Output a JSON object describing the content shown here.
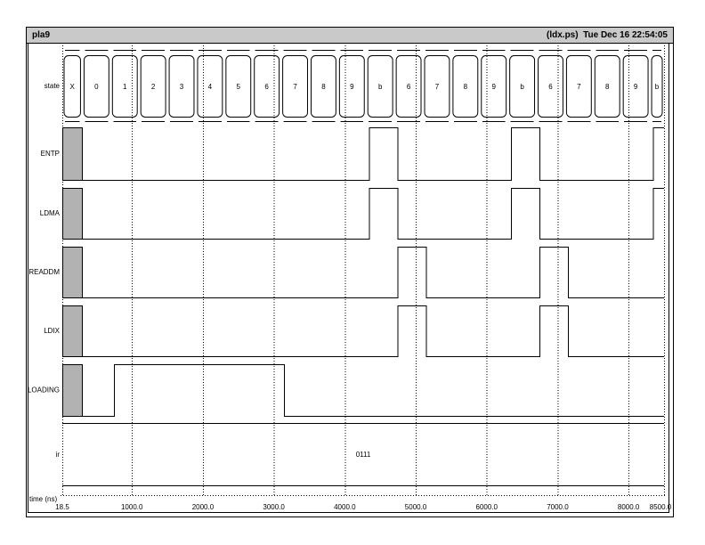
{
  "titlebar": {
    "title": "pla9",
    "info": "(ldx.ps)  Tue Dec 16 22:54:05"
  },
  "colors": {
    "titlebar_bg": "#c9c9c9",
    "unknown_fill": "#b2b2b2",
    "line": "#000000",
    "background": "#ffffff"
  },
  "chart_data": {
    "type": "waveform",
    "time_unit": "ns",
    "time_start": 18.5,
    "time_end": 8500,
    "clock_period": 400,
    "state_row": {
      "label": "state",
      "boundaries": [
        18.5,
        300,
        700,
        1100,
        1500,
        1900,
        2300,
        2700,
        3100,
        3500,
        3900,
        4300,
        4700,
        5100,
        5500,
        5900,
        6300,
        6700,
        7100,
        7500,
        7900,
        8300,
        8500
      ],
      "values": [
        "X",
        "0",
        "1",
        "2",
        "3",
        "4",
        "5",
        "6",
        "7",
        "8",
        "9",
        "b",
        "6",
        "7",
        "8",
        "9",
        "b",
        "6",
        "7",
        "8",
        "9",
        "b"
      ]
    },
    "signals": [
      {
        "name": "ENTP",
        "initial": "X",
        "transitions": [
          [
            300,
            0
          ],
          [
            4350,
            1
          ],
          [
            4750,
            0
          ],
          [
            6350,
            1
          ],
          [
            6750,
            0
          ],
          [
            8350,
            1
          ]
        ]
      },
      {
        "name": "LDMA",
        "initial": "X",
        "transitions": [
          [
            300,
            0
          ],
          [
            4350,
            1
          ],
          [
            4750,
            0
          ],
          [
            6350,
            1
          ],
          [
            6750,
            0
          ],
          [
            8350,
            1
          ]
        ]
      },
      {
        "name": "READDM",
        "initial": "X",
        "transitions": [
          [
            300,
            0
          ],
          [
            4750,
            1
          ],
          [
            5150,
            0
          ],
          [
            6750,
            1
          ],
          [
            7150,
            0
          ]
        ]
      },
      {
        "name": "LDIX",
        "initial": "X",
        "transitions": [
          [
            300,
            0
          ],
          [
            4750,
            1
          ],
          [
            5150,
            0
          ],
          [
            6750,
            1
          ],
          [
            7150,
            0
          ]
        ]
      },
      {
        "name": "LOADING",
        "initial": "X",
        "transitions": [
          [
            300,
            0
          ],
          [
            750,
            1
          ],
          [
            3150,
            0
          ]
        ]
      }
    ],
    "bus_rows": [
      {
        "name": "ir",
        "value": "0111"
      }
    ],
    "time_axis": {
      "label": "time (ns)",
      "ticks": [
        {
          "t": 18.5,
          "label": "18.5"
        },
        {
          "t": 1000,
          "label": "1000.0"
        },
        {
          "t": 2000,
          "label": "2000.0"
        },
        {
          "t": 3000,
          "label": "3000.0"
        },
        {
          "t": 4000,
          "label": "4000.0"
        },
        {
          "t": 5000,
          "label": "5000.0"
        },
        {
          "t": 6000,
          "label": "6000.0"
        },
        {
          "t": 7000,
          "label": "7000.0"
        },
        {
          "t": 8000,
          "label": "8000.0"
        },
        {
          "t": 8500,
          "label": "8500.0"
        }
      ]
    }
  }
}
